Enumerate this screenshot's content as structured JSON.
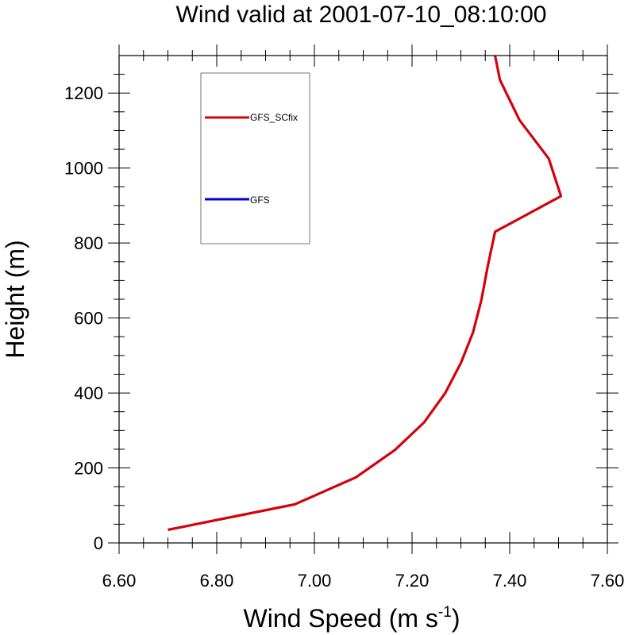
{
  "chart_data": {
    "type": "line",
    "title": "Wind valid at 2001-07-10_08:10:00",
    "xlabel": "Wind Speed (m s",
    "xlabel_superscript": "-1",
    "xlabel_suffix": ")",
    "ylabel": "Height (m)",
    "xlim": [
      6.6,
      7.6
    ],
    "ylim": [
      0,
      1300
    ],
    "xticks": [
      6.6,
      6.8,
      7.0,
      7.2,
      7.4,
      7.6
    ],
    "xtick_labels": [
      "6.60",
      "6.80",
      "7.00",
      "7.20",
      "7.40",
      "7.60"
    ],
    "yticks": [
      0,
      200,
      400,
      600,
      800,
      1000,
      1200
    ],
    "ytick_labels": [
      "0",
      "200",
      "400",
      "600",
      "800",
      "1000",
      "1200"
    ],
    "legend_position": "top-left",
    "series": [
      {
        "name": "GFS",
        "color": "#0000dd",
        "points": [
          {
            "x": 6.7,
            "y": 35
          },
          {
            "x": 6.96,
            "y": 103
          },
          {
            "x": 7.085,
            "y": 175
          },
          {
            "x": 7.165,
            "y": 248
          },
          {
            "x": 7.225,
            "y": 322
          },
          {
            "x": 7.268,
            "y": 400
          },
          {
            "x": 7.3,
            "y": 480
          },
          {
            "x": 7.325,
            "y": 562
          },
          {
            "x": 7.342,
            "y": 648
          },
          {
            "x": 7.355,
            "y": 738
          },
          {
            "x": 7.37,
            "y": 830
          },
          {
            "x": 7.505,
            "y": 925
          },
          {
            "x": 7.48,
            "y": 1025
          },
          {
            "x": 7.42,
            "y": 1128
          },
          {
            "x": 7.38,
            "y": 1235
          },
          {
            "x": 7.37,
            "y": 1300
          }
        ]
      },
      {
        "name": "GFS_SCfix",
        "color": "#dd0000",
        "points": [
          {
            "x": 6.7,
            "y": 35
          },
          {
            "x": 6.96,
            "y": 103
          },
          {
            "x": 7.085,
            "y": 175
          },
          {
            "x": 7.165,
            "y": 248
          },
          {
            "x": 7.225,
            "y": 322
          },
          {
            "x": 7.268,
            "y": 400
          },
          {
            "x": 7.3,
            "y": 480
          },
          {
            "x": 7.325,
            "y": 562
          },
          {
            "x": 7.342,
            "y": 648
          },
          {
            "x": 7.355,
            "y": 738
          },
          {
            "x": 7.37,
            "y": 830
          },
          {
            "x": 7.505,
            "y": 925
          },
          {
            "x": 7.48,
            "y": 1025
          },
          {
            "x": 7.42,
            "y": 1128
          },
          {
            "x": 7.38,
            "y": 1235
          },
          {
            "x": 7.37,
            "y": 1300
          }
        ]
      }
    ],
    "legend_order": [
      "GFS_SCfix",
      "GFS"
    ]
  }
}
